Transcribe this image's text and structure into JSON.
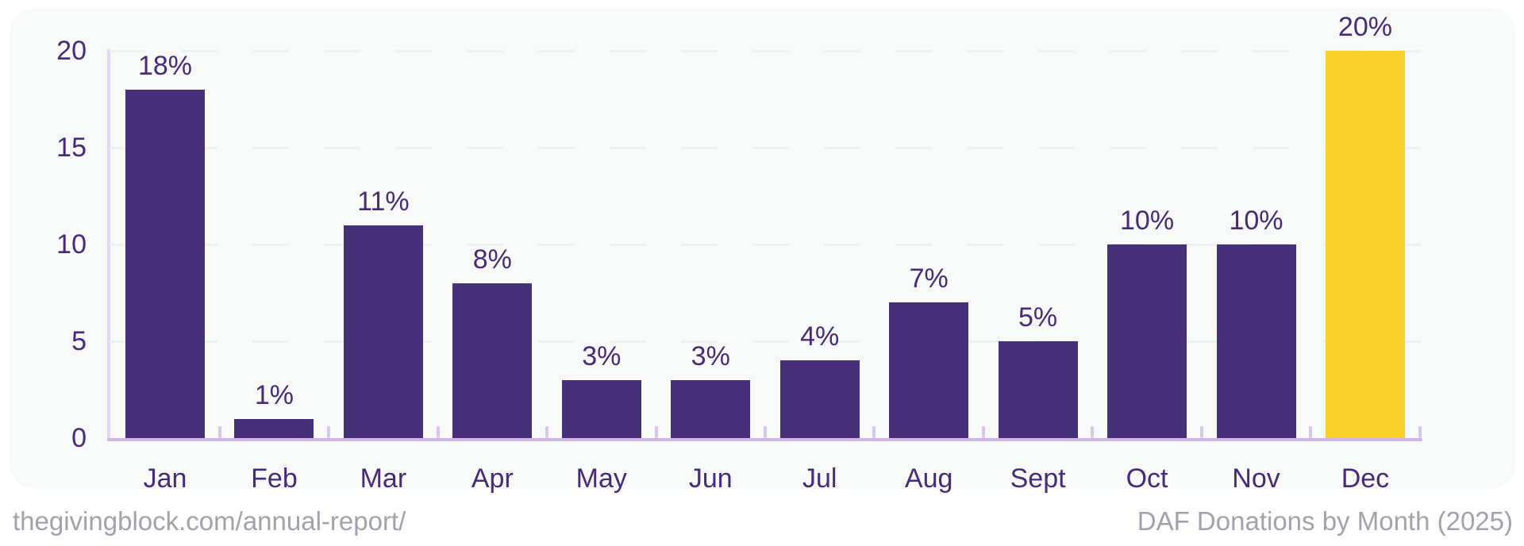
{
  "chart_data": {
    "type": "bar",
    "title": "DAF Donations by Month (2025)",
    "categories": [
      "Jan",
      "Feb",
      "Mar",
      "Apr",
      "May",
      "Jun",
      "Jul",
      "Aug",
      "Sept",
      "Oct",
      "Nov",
      "Dec"
    ],
    "values": [
      18,
      1,
      11,
      8,
      3,
      3,
      4,
      7,
      5,
      10,
      10,
      20
    ],
    "value_labels": [
      "18%",
      "1%",
      "11%",
      "8%",
      "3%",
      "3%",
      "4%",
      "7%",
      "5%",
      "10%",
      "10%",
      "20%"
    ],
    "y_ticks": [
      0,
      5,
      10,
      15,
      20
    ],
    "ylim": [
      0,
      20
    ],
    "xlabel": "",
    "ylabel": "",
    "grid": "dashed horizontal gridlines at 5, 10, 15, 20",
    "legend_position": "none",
    "highlight_category": "Dec",
    "colors": {
      "bar": "#453079",
      "highlight_bar": "#f9d12b",
      "axis_label_text": "#472a7c",
      "axis_line_vertical": "#e4d6f4",
      "axis_line_horizontal": "#cdb5e8",
      "axis_tick": "#d9c6f0",
      "grid_line": "#e9f3f1",
      "footer_text": "#a2a1ad",
      "card_background": "#f8faf9"
    }
  },
  "footer": {
    "source_url": "thegivingblock.com/annual-report/",
    "caption": "DAF Donations by Month (2025)"
  }
}
